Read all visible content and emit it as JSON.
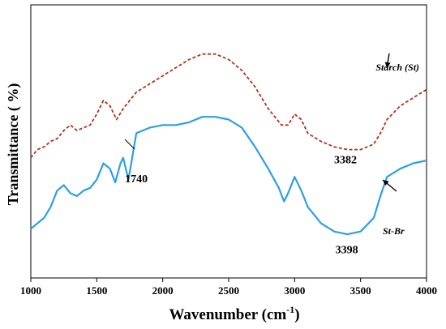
{
  "chart_data": {
    "type": "line",
    "title": "",
    "xlabel": "Wavenumber (cm",
    "xlabel_sup": "-1",
    "xlabel_close": ")",
    "ylabel": "Transmittance ( %)",
    "xlim": [
      1000,
      4000
    ],
    "x_ticks": [
      1000,
      1500,
      2000,
      2500,
      3000,
      3500,
      4000
    ],
    "grid": false,
    "legend": "none",
    "series": [
      {
        "name": "Starch (St)",
        "color": "#b5321c",
        "style": "dashed",
        "x": [
          1000,
          1050,
          1100,
          1150,
          1200,
          1250,
          1300,
          1350,
          1400,
          1450,
          1500,
          1550,
          1600,
          1650,
          1700,
          1800,
          1900,
          2000,
          2100,
          2200,
          2300,
          2400,
          2500,
          2600,
          2700,
          2800,
          2900,
          2950,
          3000,
          3050,
          3100,
          3200,
          3300,
          3400,
          3500,
          3600,
          3650,
          3700,
          3800,
          3900,
          4000
        ],
        "y": [
          44,
          47,
          48,
          50,
          51,
          54,
          56,
          54,
          55,
          56,
          60,
          65,
          63,
          58,
          62,
          68,
          71,
          74,
          77,
          80,
          82,
          82,
          80,
          76,
          70,
          62,
          56,
          56,
          60,
          58,
          53,
          50,
          48,
          47,
          47,
          49,
          53,
          58,
          63,
          66,
          69
        ]
      },
      {
        "name": "St-Br",
        "color": "#2e9fe6",
        "style": "solid",
        "x": [
          1000,
          1050,
          1100,
          1150,
          1200,
          1250,
          1300,
          1350,
          1400,
          1450,
          1500,
          1550,
          1600,
          1640,
          1680,
          1700,
          1740,
          1800,
          1900,
          2000,
          2100,
          2200,
          2300,
          2400,
          2500,
          2600,
          2700,
          2800,
          2880,
          2920,
          2950,
          3000,
          3050,
          3100,
          3200,
          3300,
          3400,
          3500,
          3600,
          3650,
          3700,
          3800,
          3900,
          4000
        ],
        "y": [
          18,
          20,
          22,
          26,
          32,
          34,
          31,
          30,
          32,
          33,
          36,
          42,
          40,
          35,
          42,
          44,
          36,
          53,
          55,
          56,
          56,
          57,
          59,
          59,
          58,
          55,
          48,
          40,
          33,
          28,
          31,
          37,
          32,
          26,
          20,
          17,
          16,
          17,
          22,
          30,
          37,
          40,
          42,
          43
        ]
      }
    ],
    "annotations": [
      {
        "text": "Starch (St)",
        "x": 3780,
        "y": 76
      },
      {
        "text": "3382",
        "x": 3385,
        "y": 42
      },
      {
        "text": "1740",
        "x": 1800,
        "y": 35
      },
      {
        "text": "3398",
        "x": 3395,
        "y": 9
      },
      {
        "text": "St-Br",
        "x": 3750,
        "y": 16
      }
    ]
  }
}
